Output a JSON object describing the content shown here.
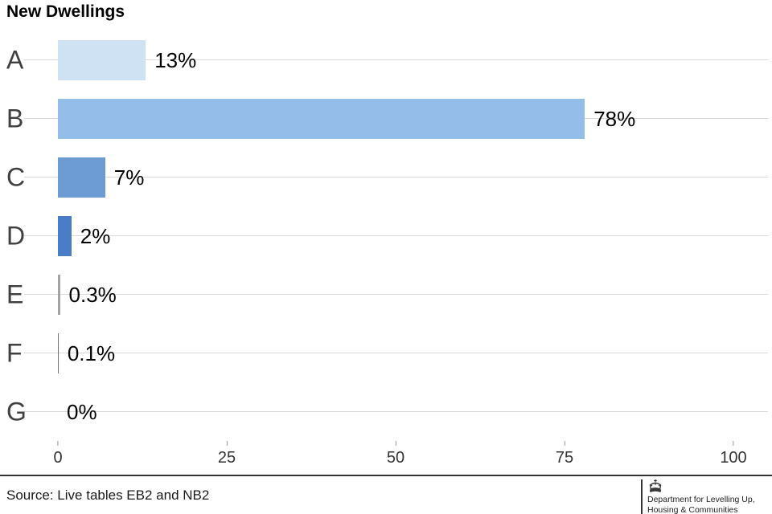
{
  "chart_data": {
    "type": "bar",
    "orientation": "horizontal",
    "title": "New Dwellings",
    "categories": [
      "A",
      "B",
      "C",
      "D",
      "E",
      "F",
      "G"
    ],
    "values": [
      13,
      78,
      7,
      2,
      0.3,
      0.1,
      0
    ],
    "value_labels": [
      "13%",
      "78%",
      "7%",
      "2%",
      "0.3%",
      "0.1%",
      "0%"
    ],
    "bar_colors": [
      "#cfe2f4",
      "#94bde9",
      "#6c9cd3",
      "#4a7dc8",
      "#a3a3a3",
      "#6e6e6e",
      "#ffffff"
    ],
    "x_ticks": [
      0,
      25,
      50,
      75,
      100
    ],
    "xlim": [
      0,
      100
    ],
    "xlabel": "",
    "ylabel": "",
    "grid": "horizontal-gridline-per-category",
    "legend": "none"
  },
  "footer": {
    "source": "Source: Live tables EB2 and NB2",
    "department_line1": "Department for Levelling Up,",
    "department_line2": "Housing & Communities",
    "logo_icon": "uk-royal-crown-icon",
    "accent_color": "#333333"
  }
}
